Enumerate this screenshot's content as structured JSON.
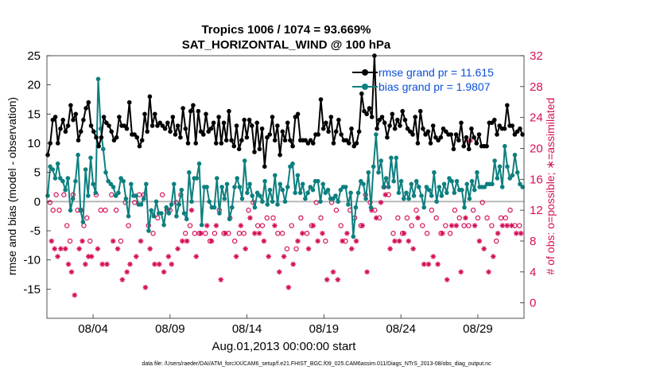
{
  "chart_data": {
    "type": "line",
    "title_line1": "Tropics 1006 / 1074 = 93.669%",
    "title_line2": "SAT_HORIZONTAL_WIND @ 100 hPa",
    "xlabel": "Aug.01,2013 00:00:00 start",
    "ylabel_left": "rmse and bias (model - observation)",
    "ylabel_right": "# of obs: o=possible; ∗=assimilated",
    "footer": "data file: /Users/raeder/DAI/ATM_forcXX/CAM6_setup/f.e21.FHIST_BGC.f09_025.CAM6assim.011/Diags_NTrS_2013-08/obs_diag_output.nc",
    "x_ticks": [
      "08/04",
      "08/09",
      "08/14",
      "08/19",
      "08/24",
      "08/29"
    ],
    "x_tick_days": [
      4,
      9,
      14,
      19,
      24,
      29
    ],
    "xlim_days": [
      1,
      32
    ],
    "ylim_left": [
      -20,
      25
    ],
    "y_ticks_left": [
      "-15",
      "-10",
      "-5",
      "0",
      "5",
      "10",
      "15",
      "20",
      "25"
    ],
    "ylim_right": [
      -2,
      32
    ],
    "y_ticks_right": [
      "0",
      "4",
      "8",
      "12",
      "16",
      "20",
      "24",
      "28",
      "32"
    ],
    "colors": {
      "rmse": "#000000",
      "bias": "#0e7f7f",
      "obs": "#d4105a",
      "zero": "#b4b4b4",
      "legend_text": "#0b4fd6"
    },
    "series": [
      {
        "name": "rmse grand pr = 11.615",
        "key": "rmse",
        "values": [
          8.0,
          10.0,
          14.0,
          14.5,
          10.0,
          12.5,
          14.0,
          12.0,
          13.0,
          16.5,
          14.0,
          15.0,
          10.5,
          12.0,
          14.0,
          16.0,
          17.0,
          13.0,
          12.0,
          11.0,
          9.5,
          11.0,
          14.5,
          13.5,
          13.0,
          12.0,
          10.5,
          11.0,
          14.5,
          13.0,
          13.0,
          12.5,
          17.0,
          11.5,
          11.5,
          11.0,
          9.5,
          10.5,
          15.0,
          12.0,
          18.0,
          13.0,
          15.0,
          13.0,
          13.5,
          13.0,
          12.5,
          13.5,
          12.0,
          14.5,
          11.5,
          13.0,
          11.0,
          16.0,
          12.5,
          10.0,
          15.5,
          16.5,
          10.0,
          15.5,
          12.0,
          11.5,
          15.0,
          12.0,
          12.5,
          13.5,
          10.0,
          14.5,
          10.0,
          13.5,
          10.5,
          15.5,
          10.5,
          9.5,
          13.0,
          9.0,
          10.5,
          14.0,
          11.0,
          14.0,
          13.0,
          8.5,
          13.5,
          9.0,
          12.5,
          6.0,
          11.0,
          11.5,
          14.5,
          10.5,
          13.0,
          8.0,
          12.0,
          10.5,
          13.5,
          10.5,
          9.5,
          14.5,
          15.0,
          10.5,
          10.5,
          10.5,
          10.0,
          10.5,
          10.0,
          11.5,
          11.5,
          17.5,
          12.5,
          13.5,
          12.0,
          14.5,
          10.0,
          12.0,
          14.0,
          11.5,
          10.5,
          10.5,
          10.0,
          12.5,
          9.5,
          10.0,
          12.0,
          18.5,
          15.5,
          15.0,
          16.0,
          14.5,
          25.0,
          12.5,
          14.0,
          14.5,
          13.5,
          11.0,
          13.0,
          15.0,
          12.5,
          14.0,
          13.0,
          15.5,
          14.0,
          12.5,
          12.0,
          11.5,
          14.5,
          10.0,
          15.5,
          12.5,
          11.5,
          12.0,
          10.0,
          13.0,
          11.0,
          10.5,
          11.0,
          12.5,
          12.0,
          11.5,
          11.5,
          9.0,
          11.5,
          10.5,
          13.5,
          9.5,
          11.0,
          9.0,
          12.5,
          11.0,
          10.0,
          11.5,
          9.5,
          9.5,
          9.5,
          13.5,
          13.5,
          14.0,
          11.5,
          13.0,
          12.5,
          12.5,
          16.5,
          13.0,
          13.0,
          11.5,
          12.0,
          12.5,
          11.5
        ]
      },
      {
        "name": "bias grand pr = 1.9807",
        "key": "bias",
        "values": [
          1.0,
          6.0,
          5.5,
          4.0,
          6.5,
          4.0,
          3.5,
          2.0,
          4.0,
          -1.5,
          0.5,
          3.5,
          8.0,
          -1.5,
          -3.5,
          5.5,
          1.0,
          7.5,
          3.0,
          1.5,
          21.0,
          12.5,
          9.0,
          5.0,
          3.5,
          3.0,
          2.5,
          1.0,
          1.5,
          4.0,
          3.5,
          0.5,
          -2.5,
          3.0,
          1.0,
          1.0,
          -0.5,
          -0.5,
          0.5,
          3.0,
          -5.0,
          -1.5,
          -2.5,
          0.0,
          -2.0,
          -2.0,
          -4.0,
          -1.0,
          -2.0,
          -0.5,
          3.0,
          -2.5,
          -0.5,
          2.0,
          -2.0,
          -3.0,
          5.0,
          0.0,
          4.0,
          4.0,
          6.5,
          -4.0,
          2.5,
          2.5,
          0.0,
          -1.0,
          -1.0,
          4.0,
          -2.0,
          2.5,
          0.5,
          3.0,
          -3.0,
          -1.0,
          2.5,
          4.0,
          2.5,
          0.5,
          7.0,
          1.5,
          3.0,
          1.0,
          -1.0,
          1.5,
          1.0,
          0.0,
          3.5,
          -0.5,
          2.0,
          0.0,
          4.5,
          -0.5,
          3.0,
          2.0,
          0.0,
          2.5,
          6.0,
          6.5,
          1.5,
          4.5,
          1.5,
          3.0,
          0.5,
          1.5,
          2.5,
          2.0,
          3.5,
          3.5,
          0.0,
          3.0,
          1.5,
          2.0,
          0.5,
          0.5,
          1.0,
          0.0,
          2.0,
          2.5,
          2.5,
          -0.5,
          1.5,
          -6.0,
          -1.0,
          1.5,
          3.5,
          3.0,
          0.5,
          5.0,
          -1.0,
          6.0,
          11.5,
          5.0,
          7.0,
          2.5,
          4.0,
          2.5,
          7.5,
          3.5,
          7.5,
          1.5,
          3.5,
          0.5,
          1.5,
          0.5,
          3.0,
          1.0,
          3.5,
          2.5,
          1.0,
          -1.0,
          2.5,
          2.0,
          1.0,
          5.0,
          0.0,
          2.5,
          1.0,
          3.0,
          1.5,
          4.0,
          3.5,
          1.5,
          3.5,
          2.0,
          2.0,
          -1.0,
          3.0,
          0.5,
          3.5,
          2.0,
          5.0,
          2.5,
          2.5,
          2.5,
          3.0,
          3.0,
          3.0,
          7.0,
          4.0,
          6.0,
          2.5,
          9.5,
          6.0,
          4.0,
          4.5,
          8.0,
          5.0,
          3.0,
          2.5
        ]
      }
    ],
    "obs_possible_days": [
      1.2,
      1.4,
      1.6,
      1.8,
      2.1,
      2.3,
      2.5,
      2.7,
      3.0,
      3.2,
      3.4,
      3.6,
      3.8,
      4.2,
      4.5,
      4.8,
      5.2,
      5.5,
      5.8,
      6.1,
      6.3,
      6.7,
      7.0,
      7.3,
      7.6,
      7.9,
      8.2,
      8.5,
      8.8,
      9.0,
      9.4,
      9.7,
      10.0,
      10.3,
      10.6,
      10.9,
      11.3,
      11.6,
      11.9,
      12.2,
      12.5,
      12.8,
      13.2,
      13.5,
      13.8,
      14.1,
      14.4,
      14.7,
      15.0,
      15.3,
      15.7,
      16.0,
      16.3,
      16.6,
      16.9,
      17.2,
      17.5,
      17.9,
      18.2,
      18.5,
      18.8,
      19.1,
      19.5,
      19.8,
      20.1,
      20.4,
      20.7,
      21.0,
      21.4,
      21.7,
      22.0,
      22.3,
      22.6,
      22.9,
      23.2,
      23.5,
      23.8,
      24.1,
      24.4,
      24.7,
      25.0,
      25.4,
      25.7,
      26.0,
      26.3,
      26.6,
      26.9,
      27.2,
      27.5,
      27.8,
      28.1,
      28.4,
      28.7,
      29.0,
      29.3,
      29.6,
      29.9,
      30.2,
      30.5,
      30.8,
      31.1,
      31.4,
      31.7
    ],
    "obs_possible_counts": [
      13,
      12,
      14,
      12,
      14,
      10,
      8,
      14,
      12,
      12,
      10,
      11,
      8,
      14,
      12,
      12,
      14,
      12,
      8,
      13,
      10,
      13,
      14,
      14,
      10,
      9,
      11,
      14,
      12,
      12,
      13,
      14,
      9,
      10,
      9,
      9,
      9,
      8,
      9,
      12,
      9,
      9,
      8,
      9,
      9,
      12,
      13,
      10,
      10,
      11,
      11,
      9,
      9,
      7,
      10,
      7,
      11,
      9,
      10,
      13,
      11,
      8,
      13,
      12,
      10,
      8,
      12,
      11,
      10,
      14,
      13,
      12,
      11,
      15,
      14,
      9,
      11,
      9,
      11,
      10,
      12,
      10,
      9,
      12,
      11,
      9,
      10,
      9,
      12,
      11,
      10,
      10,
      12,
      11,
      13,
      11,
      10,
      8,
      11,
      11,
      12,
      10,
      10
    ],
    "obs_assimilated_days": [
      1.3,
      1.5,
      1.7,
      1.9,
      2.2,
      2.4,
      2.6,
      2.8,
      3.1,
      3.3,
      3.5,
      3.7,
      3.9,
      4.3,
      4.6,
      4.9,
      5.3,
      5.6,
      5.9,
      6.2,
      6.4,
      6.8,
      7.1,
      7.4,
      7.7,
      8.0,
      8.3,
      8.6,
      8.9,
      9.1,
      9.5,
      9.8,
      10.1,
      10.4,
      10.7,
      11.0,
      11.4,
      11.7,
      12.0,
      12.3,
      12.6,
      12.9,
      13.3,
      13.6,
      13.9,
      14.2,
      14.5,
      14.8,
      15.1,
      15.4,
      15.8,
      16.1,
      16.4,
      16.7,
      17.0,
      17.3,
      17.6,
      18.0,
      18.3,
      18.6,
      18.9,
      19.2,
      19.6,
      19.9,
      20.2,
      20.5,
      20.8,
      21.1,
      21.5,
      21.8,
      22.1,
      22.4,
      22.7,
      23.0,
      23.3,
      23.6,
      23.9,
      24.2,
      24.5,
      24.8,
      25.1,
      25.5,
      25.8,
      26.1,
      26.4,
      26.7,
      27.0,
      27.3,
      27.6,
      27.9,
      28.2,
      28.5,
      28.8,
      29.1,
      29.4,
      29.7,
      30.0,
      30.3,
      30.6,
      30.9,
      31.2,
      31.5,
      31.8
    ],
    "obs_assimilated_counts": [
      8,
      7,
      6,
      7,
      7,
      5,
      4,
      1,
      7,
      8,
      5,
      6,
      6,
      7,
      5,
      5,
      8,
      7,
      3,
      4,
      5,
      6,
      8,
      2,
      7,
      5,
      5,
      4,
      6,
      5,
      7,
      8,
      8,
      12,
      6,
      9,
      10,
      8,
      10,
      3,
      9,
      11,
      6,
      10,
      7,
      11,
      9,
      9,
      8,
      6,
      10,
      4,
      6,
      2,
      5,
      8,
      9,
      7,
      10,
      8,
      9,
      3,
      4,
      3,
      8,
      9,
      7,
      8,
      10,
      4,
      12,
      11,
      13,
      14,
      7,
      8,
      8,
      9,
      8,
      7,
      11,
      5,
      5,
      6,
      5,
      9,
      3,
      10,
      10,
      4,
      11,
      21,
      10,
      8,
      7,
      4,
      6,
      9,
      10,
      10,
      10,
      9,
      9
    ]
  }
}
